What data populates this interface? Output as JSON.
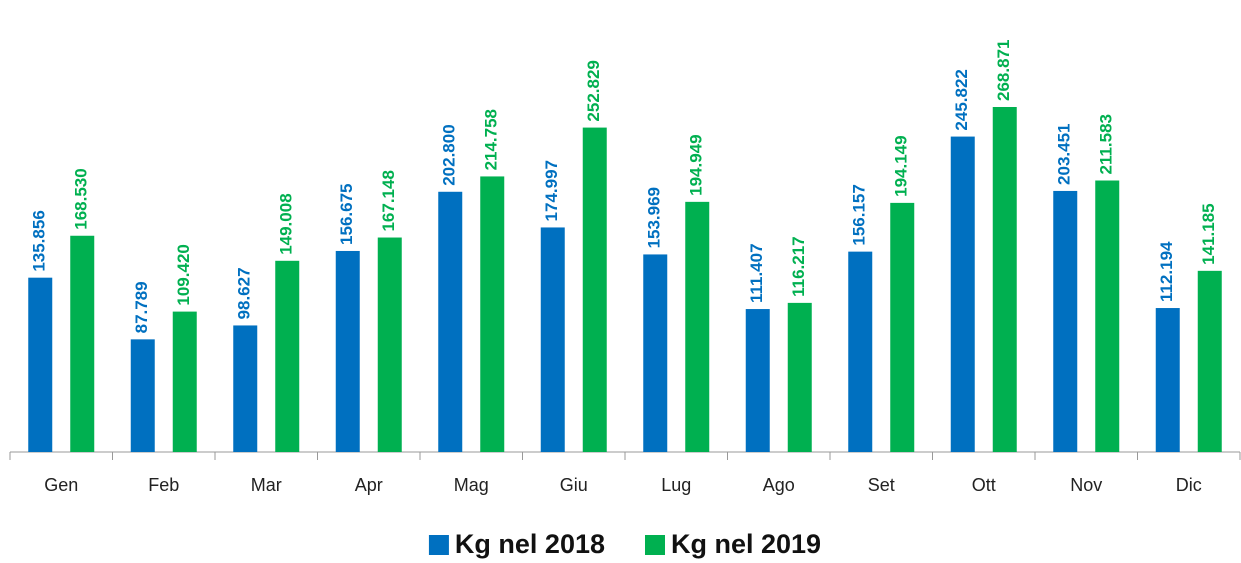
{
  "chart_data": {
    "type": "bar",
    "categories": [
      "Gen",
      "Feb",
      "Mar",
      "Apr",
      "Mag",
      "Giu",
      "Lug",
      "Ago",
      "Set",
      "Ott",
      "Nov",
      "Dic"
    ],
    "series": [
      {
        "name": "Kg nel 2018",
        "color": "#0070c0",
        "values": [
          135856,
          87789,
          98627,
          156675,
          202800,
          174997,
          153969,
          111407,
          156157,
          245822,
          203451,
          112194
        ],
        "value_labels": [
          "135.856",
          "87.789",
          "98.627",
          "156.675",
          "202.800",
          "174.997",
          "153.969",
          "111.407",
          "156.157",
          "245.822",
          "203.451",
          "112.194"
        ]
      },
      {
        "name": "Kg nel 2019",
        "color": "#00b050",
        "values": [
          168530,
          109420,
          149008,
          167148,
          214758,
          252829,
          194949,
          116217,
          194149,
          268871,
          211583,
          141185
        ],
        "value_labels": [
          "168.530",
          "109.420",
          "149.008",
          "167.148",
          "214.758",
          "252.829",
          "194.949",
          "116.217",
          "194.149",
          "268.871",
          "211.583",
          "141.185"
        ]
      }
    ]
  }
}
